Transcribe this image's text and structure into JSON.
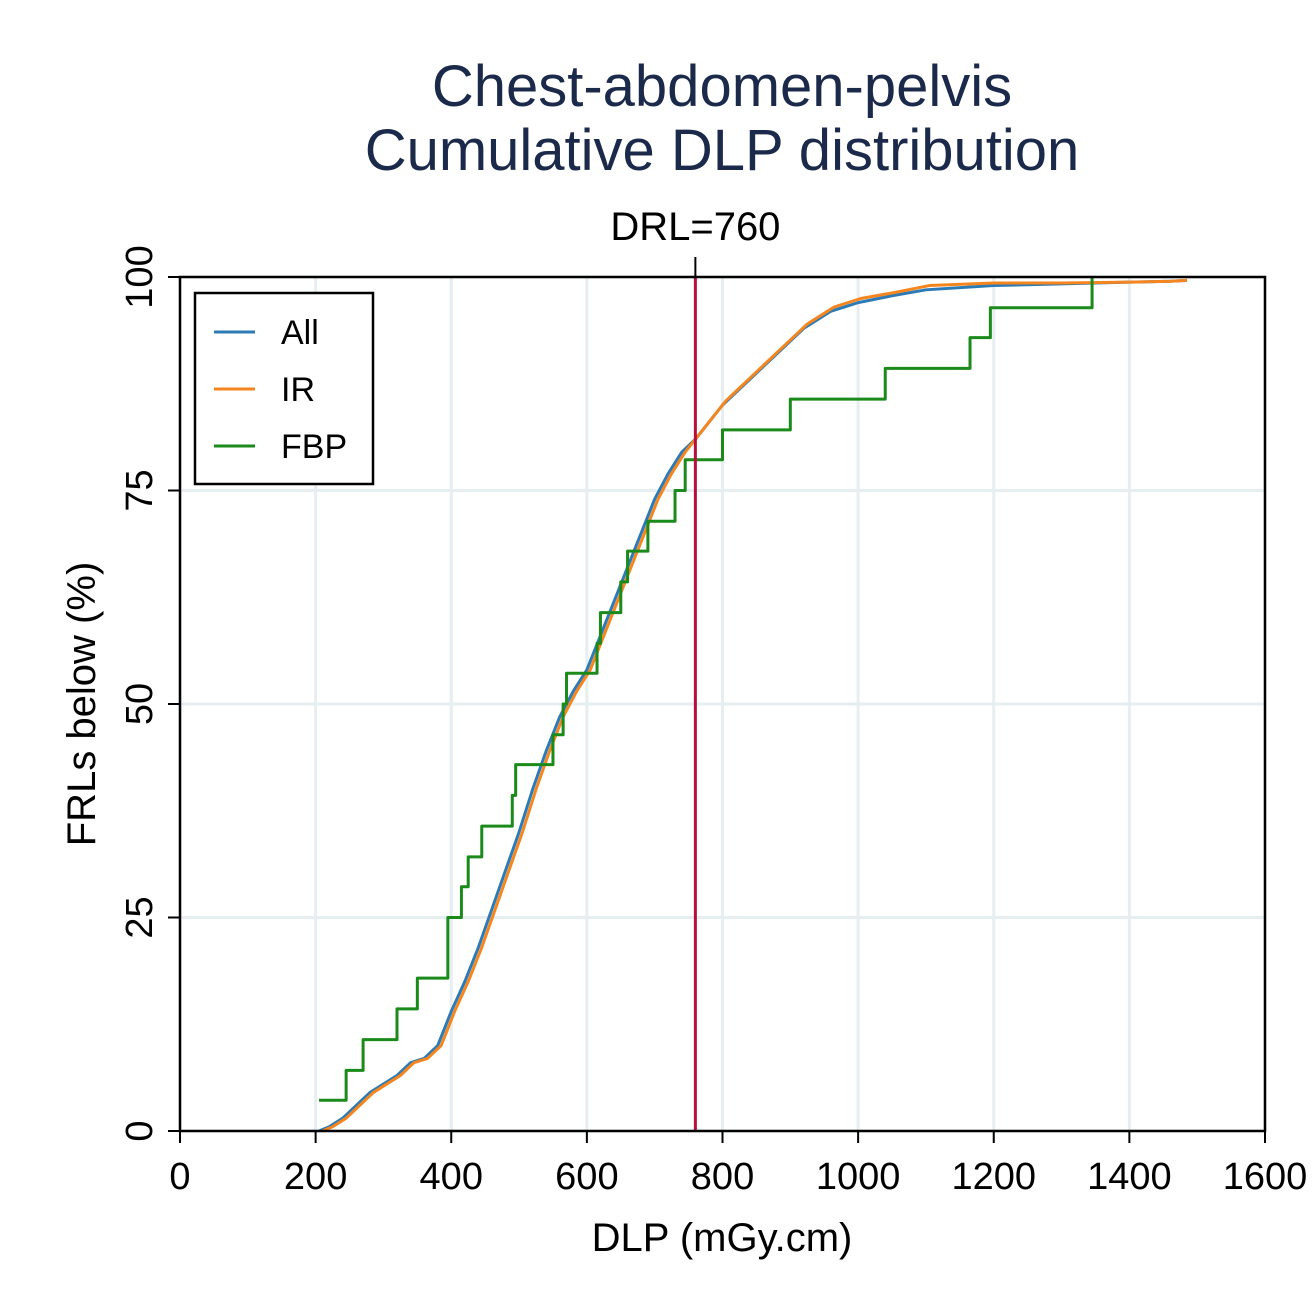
{
  "chart_data": {
    "type": "line",
    "step": true,
    "title": [
      "Chest-abdomen-pelvis",
      "Cumulative DLP distribution"
    ],
    "xlabel": "DLP (mGy.cm)",
    "ylabel": "FRLs below (%)",
    "xlim": [
      0,
      1600
    ],
    "ylim": [
      0,
      100
    ],
    "xticks": [
      0,
      200,
      400,
      600,
      800,
      1000,
      1200,
      1400,
      1600
    ],
    "yticks": [
      0,
      25,
      50,
      75,
      100
    ],
    "grid": true,
    "legend_position": "top-left",
    "reference_line": {
      "x": 760,
      "label": "DRL=760",
      "color": "#b5103c"
    },
    "series": [
      {
        "name": "All",
        "color": "#2c7bb6",
        "x": [
          205,
          220,
          240,
          260,
          280,
          300,
          320,
          340,
          360,
          380,
          390,
          400,
          420,
          440,
          460,
          480,
          500,
          520,
          540,
          560,
          580,
          600,
          620,
          640,
          660,
          680,
          700,
          720,
          740,
          760,
          780,
          800,
          820,
          840,
          860,
          880,
          900,
          920,
          940,
          960,
          980,
          1000,
          1050,
          1100,
          1200,
          1300,
          1400,
          1460,
          1485
        ],
        "y": [
          0,
          0.5,
          1.5,
          3,
          4.5,
          5.5,
          6.5,
          8,
          8.5,
          10,
          12,
          14,
          17.5,
          21.5,
          26,
          30.5,
          35,
          40,
          44.5,
          48.5,
          51.5,
          54,
          58,
          62,
          66,
          70,
          74,
          77,
          79.5,
          81,
          83,
          85,
          86.5,
          88,
          89.5,
          91,
          92.5,
          94,
          95,
          96,
          96.5,
          97,
          97.8,
          98.5,
          99,
          99.2,
          99.4,
          99.5,
          99.6
        ]
      },
      {
        "name": "IR",
        "color": "#f5861f",
        "x": [
          210,
          225,
          245,
          265,
          285,
          305,
          325,
          345,
          365,
          385,
          395,
          405,
          425,
          445,
          465,
          485,
          505,
          525,
          545,
          565,
          585,
          605,
          625,
          645,
          665,
          685,
          705,
          725,
          745,
          765,
          785,
          805,
          825,
          845,
          865,
          885,
          905,
          925,
          945,
          965,
          985,
          1005,
          1055,
          1105,
          1200,
          1300,
          1400,
          1460,
          1485
        ],
        "y": [
          0,
          0.5,
          1.5,
          3,
          4.5,
          5.5,
          6.5,
          8,
          8.5,
          10,
          12,
          14,
          17.5,
          21.5,
          26,
          30.5,
          35,
          40,
          44.5,
          48.5,
          51.5,
          54,
          58,
          62,
          66,
          70,
          74,
          77,
          79.5,
          81.5,
          83.5,
          85.5,
          87,
          88.5,
          90,
          91.5,
          93,
          94.5,
          95.5,
          96.5,
          97,
          97.5,
          98.2,
          99,
          99.3,
          99.3,
          99.4,
          99.5,
          99.6
        ]
      },
      {
        "name": "FBP",
        "color": "#1a8a1a",
        "x": [
          205,
          245,
          270,
          320,
          350,
          395,
          415,
          425,
          445,
          490,
          495,
          550,
          565,
          570,
          615,
          620,
          650,
          660,
          690,
          730,
          745,
          800,
          900,
          1040,
          1165,
          1195,
          1345
        ],
        "y": [
          3.6,
          7.1,
          10.7,
          14.3,
          17.9,
          25,
          28.6,
          32.1,
          35.7,
          39.3,
          42.9,
          46.4,
          50,
          53.6,
          57.1,
          60.7,
          64.3,
          67.9,
          71.4,
          75,
          78.6,
          82.1,
          85.7,
          89.3,
          92.9,
          96.4,
          100
        ]
      }
    ]
  }
}
